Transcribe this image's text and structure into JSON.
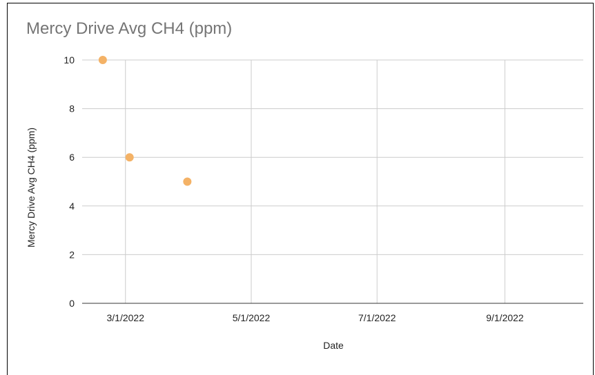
{
  "chart_data": {
    "type": "scatter",
    "title": "Mercy Drive Avg CH4 (ppm)",
    "xlabel": "Date",
    "ylabel": "Mercy Drive Avg CH4 (ppm)",
    "ylim": [
      0,
      10
    ],
    "yticks": [
      "0",
      "2",
      "4",
      "6",
      "8",
      "10"
    ],
    "xlim": [
      "2022-02-08",
      "2022-10-09"
    ],
    "xticks": [
      {
        "date": "2022-03-01",
        "label": "3/1/2022"
      },
      {
        "date": "2022-05-01",
        "label": "5/1/2022"
      },
      {
        "date": "2022-07-01",
        "label": "7/1/2022"
      },
      {
        "date": "2022-09-01",
        "label": "9/1/2022"
      }
    ],
    "grid": true,
    "legend": "none",
    "marker_color": "#f4b266",
    "series": [
      {
        "x": [
          "2022-02-18",
          "2022-03-03",
          "2022-03-31"
        ],
        "y": [
          10,
          6,
          5
        ]
      }
    ]
  }
}
